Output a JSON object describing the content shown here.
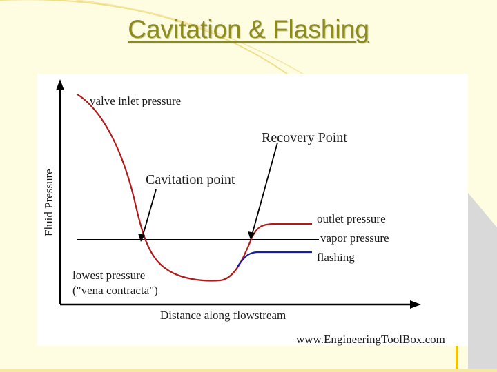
{
  "slide": {
    "title": "Cavitation & Flashing"
  },
  "diagram": {
    "y_axis_label": "Fluid Pressure",
    "x_axis_label": "Distance along flowstream",
    "labels": {
      "valve_inlet": "valve inlet pressure",
      "recovery_point": "Recovery Point",
      "cavitation_point": "Cavitation point",
      "outlet_pressure": "outlet pressure",
      "vapor_pressure": "vapor pressure",
      "flashing": "flashing",
      "lowest_pressure_1": "lowest pressure",
      "lowest_pressure_2": "(\"vena contracta\")"
    },
    "watermark": "www.EngineeringToolBox.com",
    "colors": {
      "pressure_curve": "#b01a1a",
      "flashing_curve": "#1a1aa8",
      "axes": "#000000"
    }
  }
}
